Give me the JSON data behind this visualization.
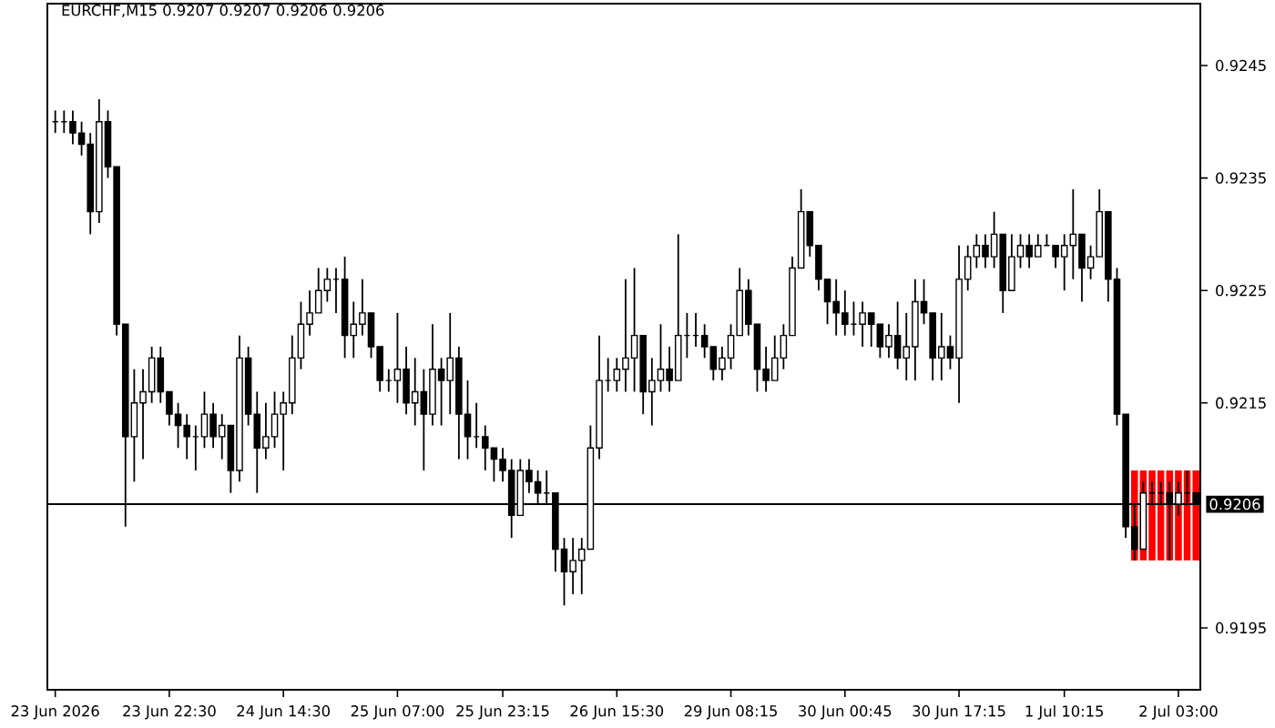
{
  "chart_data": {
    "type": "candlestick",
    "title": "EURCHF,M15  0.9207 0.9207 0.9206 0.9206",
    "categories": [
      "23 Jun 2026",
      null,
      null,
      null,
      null,
      null,
      null,
      null,
      null,
      null,
      null,
      null,
      null,
      "23 Jun 22:30",
      null,
      null,
      null,
      null,
      null,
      null,
      null,
      null,
      null,
      null,
      null,
      null,
      "24 Jun 14:30",
      null,
      null,
      null,
      null,
      null,
      null,
      null,
      null,
      null,
      null,
      null,
      null,
      "25 Jun 07:00",
      null,
      null,
      null,
      null,
      null,
      null,
      null,
      null,
      null,
      null,
      null,
      "25 Jun 23:15",
      null,
      null,
      null,
      null,
      null,
      null,
      null,
      null,
      null,
      null,
      null,
      null,
      "26 Jun 15:30",
      null,
      null,
      null,
      null,
      null,
      null,
      null,
      null,
      null,
      null,
      null,
      null,
      "29 Jun 08:15",
      null,
      null,
      null,
      null,
      null,
      null,
      null,
      null,
      null,
      null,
      null,
      null,
      "30 Jun 00:45",
      null,
      null,
      null,
      null,
      null,
      null,
      null,
      null,
      null,
      null,
      null,
      null,
      "30 Jun 17:15",
      null,
      null,
      null,
      null,
      null,
      null,
      null,
      null,
      null,
      null,
      null,
      "1 Jul 10:15",
      null,
      null,
      null,
      null,
      null,
      null,
      null,
      null,
      null,
      null,
      null,
      null,
      "2 Jul 03:00",
      null,
      null
    ],
    "series": [
      {
        "type": "bar",
        "color": "#ff0000",
        "base": [
          null,
          null,
          null,
          null,
          null,
          null,
          null,
          null,
          null,
          null,
          null,
          null,
          null,
          null,
          null,
          null,
          null,
          null,
          null,
          null,
          null,
          null,
          null,
          null,
          null,
          null,
          null,
          null,
          null,
          null,
          null,
          null,
          null,
          null,
          null,
          null,
          null,
          null,
          null,
          null,
          null,
          null,
          null,
          null,
          null,
          null,
          null,
          null,
          null,
          null,
          null,
          null,
          null,
          null,
          null,
          null,
          null,
          null,
          null,
          null,
          null,
          null,
          null,
          null,
          null,
          null,
          null,
          null,
          null,
          null,
          null,
          null,
          null,
          null,
          null,
          null,
          null,
          null,
          null,
          null,
          null,
          null,
          null,
          null,
          null,
          null,
          null,
          null,
          null,
          null,
          null,
          null,
          null,
          null,
          null,
          null,
          null,
          null,
          null,
          null,
          null,
          null,
          null,
          null,
          null,
          null,
          null,
          null,
          null,
          null,
          null,
          null,
          null,
          null,
          null,
          null,
          null,
          null,
          null,
          null,
          null,
          null,
          null,
          0.9201,
          0.9201,
          0.9201,
          0.9201,
          0.9201,
          0.9201,
          0.9201,
          0.9201
        ],
        "values": [
          null,
          null,
          null,
          null,
          null,
          null,
          null,
          null,
          null,
          null,
          null,
          null,
          null,
          null,
          null,
          null,
          null,
          null,
          null,
          null,
          null,
          null,
          null,
          null,
          null,
          null,
          null,
          null,
          null,
          null,
          null,
          null,
          null,
          null,
          null,
          null,
          null,
          null,
          null,
          null,
          null,
          null,
          null,
          null,
          null,
          null,
          null,
          null,
          null,
          null,
          null,
          null,
          null,
          null,
          null,
          null,
          null,
          null,
          null,
          null,
          null,
          null,
          null,
          null,
          null,
          null,
          null,
          null,
          null,
          null,
          null,
          null,
          null,
          null,
          null,
          null,
          null,
          null,
          null,
          null,
          null,
          null,
          null,
          null,
          null,
          null,
          null,
          null,
          null,
          null,
          null,
          null,
          null,
          null,
          null,
          null,
          null,
          null,
          null,
          null,
          null,
          null,
          null,
          null,
          null,
          null,
          null,
          null,
          null,
          null,
          null,
          null,
          null,
          null,
          null,
          null,
          null,
          null,
          null,
          null,
          null,
          null,
          null,
          0.0008,
          0.0008,
          0.0008,
          0.0008,
          0.0008,
          0.0008,
          0.0008,
          0.0008
        ]
      },
      {
        "color": "#000000",
        "ohlc": [
          [
            0.924,
            0.9241,
            0.9239,
            0.924
          ],
          [
            0.924,
            0.9241,
            0.9239,
            0.924
          ],
          [
            0.924,
            0.9241,
            0.9238,
            0.9239
          ],
          [
            0.9239,
            0.924,
            0.9237,
            0.9238
          ],
          [
            0.9238,
            0.9239,
            0.923,
            0.9232
          ],
          [
            0.9232,
            0.9242,
            0.9231,
            0.924
          ],
          [
            0.924,
            0.9241,
            0.9235,
            0.9236
          ],
          [
            0.9236,
            0.9236,
            0.9221,
            0.9222
          ],
          [
            0.9222,
            0.9222,
            0.9204,
            0.9212
          ],
          [
            0.9212,
            0.9218,
            0.9208,
            0.9215
          ],
          [
            0.9215,
            0.9218,
            0.921,
            0.9216
          ],
          [
            0.9216,
            0.922,
            0.9215,
            0.9219
          ],
          [
            0.9219,
            0.922,
            0.9215,
            0.9216
          ],
          [
            0.9216,
            0.9216,
            0.9213,
            0.9214
          ],
          [
            0.9214,
            0.9215,
            0.9211,
            0.9213
          ],
          [
            0.9213,
            0.9214,
            0.921,
            0.9212
          ],
          [
            0.9212,
            0.9213,
            0.9209,
            0.9212
          ],
          [
            0.9212,
            0.9216,
            0.9211,
            0.9214
          ],
          [
            0.9214,
            0.9215,
            0.9211,
            0.9212
          ],
          [
            0.9212,
            0.9214,
            0.921,
            0.9213
          ],
          [
            0.9213,
            0.9213,
            0.9207,
            0.9209
          ],
          [
            0.9209,
            0.9221,
            0.9208,
            0.9219
          ],
          [
            0.9219,
            0.922,
            0.9213,
            0.9214
          ],
          [
            0.9214,
            0.9216,
            0.9207,
            0.9211
          ],
          [
            0.9211,
            0.9215,
            0.921,
            0.9212
          ],
          [
            0.9212,
            0.9216,
            0.9211,
            0.9214
          ],
          [
            0.9214,
            0.9216,
            0.9209,
            0.9215
          ],
          [
            0.9215,
            0.9221,
            0.9214,
            0.9219
          ],
          [
            0.9219,
            0.9224,
            0.9218,
            0.9222
          ],
          [
            0.9222,
            0.9225,
            0.9221,
            0.9223
          ],
          [
            0.9223,
            0.9227,
            0.9223,
            0.9225
          ],
          [
            0.9225,
            0.9227,
            0.9224,
            0.9226
          ],
          [
            0.9226,
            0.9227,
            0.9223,
            0.9226
          ],
          [
            0.9226,
            0.9228,
            0.9219,
            0.9221
          ],
          [
            0.9221,
            0.9224,
            0.9219,
            0.9222
          ],
          [
            0.9222,
            0.9226,
            0.9221,
            0.9223
          ],
          [
            0.9223,
            0.9223,
            0.9219,
            0.922
          ],
          [
            0.922,
            0.922,
            0.9216,
            0.9217
          ],
          [
            0.9217,
            0.9218,
            0.9216,
            0.9217
          ],
          [
            0.9217,
            0.9223,
            0.9215,
            0.9218
          ],
          [
            0.9218,
            0.922,
            0.9214,
            0.9215
          ],
          [
            0.9215,
            0.9219,
            0.9213,
            0.9216
          ],
          [
            0.9216,
            0.9218,
            0.9209,
            0.9214
          ],
          [
            0.9214,
            0.9222,
            0.9213,
            0.9218
          ],
          [
            0.9218,
            0.9219,
            0.9213,
            0.9217
          ],
          [
            0.9217,
            0.9223,
            0.9214,
            0.9219
          ],
          [
            0.9219,
            0.922,
            0.921,
            0.9214
          ],
          [
            0.9214,
            0.9217,
            0.921,
            0.9212
          ],
          [
            0.9212,
            0.9215,
            0.9211,
            0.9212
          ],
          [
            0.9212,
            0.9213,
            0.9209,
            0.9211
          ],
          [
            0.9211,
            0.9211,
            0.9208,
            0.921
          ],
          [
            0.921,
            0.9211,
            0.9208,
            0.9209
          ],
          [
            0.9209,
            0.921,
            0.9203,
            0.9205
          ],
          [
            0.9205,
            0.921,
            0.9205,
            0.9209
          ],
          [
            0.9209,
            0.921,
            0.9207,
            0.9208
          ],
          [
            0.9208,
            0.9209,
            0.9206,
            0.9207
          ],
          [
            0.9207,
            0.9209,
            0.9206,
            0.9207
          ],
          [
            0.9207,
            0.9207,
            0.92,
            0.9202
          ],
          [
            0.9202,
            0.9203,
            0.9197,
            0.92
          ],
          [
            0.92,
            0.9203,
            0.9198,
            0.9201
          ],
          [
            0.9201,
            0.9203,
            0.9198,
            0.9202
          ],
          [
            0.9202,
            0.9213,
            0.9202,
            0.9211
          ],
          [
            0.9211,
            0.9221,
            0.921,
            0.9217
          ],
          [
            0.9217,
            0.9219,
            0.9216,
            0.9217
          ],
          [
            0.9217,
            0.9219,
            0.9216,
            0.9218
          ],
          [
            0.9218,
            0.9226,
            0.9216,
            0.9219
          ],
          [
            0.9219,
            0.9227,
            0.9216,
            0.9221
          ],
          [
            0.9221,
            0.9221,
            0.9214,
            0.9216
          ],
          [
            0.9216,
            0.9219,
            0.9213,
            0.9217
          ],
          [
            0.9217,
            0.9222,
            0.9216,
            0.9218
          ],
          [
            0.9218,
            0.922,
            0.9216,
            0.9217
          ],
          [
            0.9217,
            0.923,
            0.9217,
            0.9221
          ],
          [
            0.9221,
            0.9223,
            0.9219,
            0.9221
          ],
          [
            0.9221,
            0.9223,
            0.922,
            0.9221
          ],
          [
            0.9221,
            0.9222,
            0.9219,
            0.922
          ],
          [
            0.922,
            0.922,
            0.9217,
            0.9218
          ],
          [
            0.9218,
            0.922,
            0.9217,
            0.9219
          ],
          [
            0.9219,
            0.9222,
            0.9218,
            0.9221
          ],
          [
            0.9221,
            0.9227,
            0.9221,
            0.9225
          ],
          [
            0.9225,
            0.9226,
            0.9221,
            0.9222
          ],
          [
            0.9222,
            0.9222,
            0.9216,
            0.9218
          ],
          [
            0.9218,
            0.922,
            0.9216,
            0.9217
          ],
          [
            0.9217,
            0.9221,
            0.9217,
            0.9219
          ],
          [
            0.9219,
            0.9222,
            0.9218,
            0.9221
          ],
          [
            0.9221,
            0.9228,
            0.9221,
            0.9227
          ],
          [
            0.9227,
            0.9234,
            0.9227,
            0.9232
          ],
          [
            0.9232,
            0.9232,
            0.9228,
            0.9229
          ],
          [
            0.9229,
            0.9229,
            0.9225,
            0.9226
          ],
          [
            0.9226,
            0.9226,
            0.9222,
            0.9224
          ],
          [
            0.9224,
            0.9226,
            0.9221,
            0.9223
          ],
          [
            0.9223,
            0.9225,
            0.9221,
            0.9222
          ],
          [
            0.9222,
            0.9224,
            0.9221,
            0.9222
          ],
          [
            0.9222,
            0.9224,
            0.922,
            0.9223
          ],
          [
            0.9223,
            0.9223,
            0.922,
            0.9222
          ],
          [
            0.9222,
            0.9222,
            0.9219,
            0.922
          ],
          [
            0.922,
            0.9222,
            0.9219,
            0.9221
          ],
          [
            0.9221,
            0.9224,
            0.9218,
            0.9219
          ],
          [
            0.9219,
            0.9223,
            0.9217,
            0.922
          ],
          [
            0.922,
            0.9226,
            0.9217,
            0.9224
          ],
          [
            0.9224,
            0.9226,
            0.9222,
            0.9223
          ],
          [
            0.9223,
            0.9223,
            0.9217,
            0.9219
          ],
          [
            0.9219,
            0.9223,
            0.9217,
            0.922
          ],
          [
            0.922,
            0.9221,
            0.9218,
            0.9219
          ],
          [
            0.9219,
            0.9229,
            0.9215,
            0.9226
          ],
          [
            0.9226,
            0.9229,
            0.9225,
            0.9228
          ],
          [
            0.9228,
            0.923,
            0.9227,
            0.9229
          ],
          [
            0.9229,
            0.923,
            0.9227,
            0.9228
          ],
          [
            0.9228,
            0.9232,
            0.9227,
            0.923
          ],
          [
            0.923,
            0.923,
            0.9223,
            0.9225
          ],
          [
            0.9225,
            0.923,
            0.9225,
            0.9228
          ],
          [
            0.9228,
            0.923,
            0.9227,
            0.9229
          ],
          [
            0.9229,
            0.923,
            0.9227,
            0.9228
          ],
          [
            0.9228,
            0.923,
            0.9228,
            0.9229
          ],
          [
            0.9229,
            0.923,
            0.9229,
            0.9229
          ],
          [
            0.9229,
            0.9229,
            0.9227,
            0.9228
          ],
          [
            0.9228,
            0.923,
            0.9225,
            0.9229
          ],
          [
            0.9229,
            0.9234,
            0.9226,
            0.923
          ],
          [
            0.923,
            0.923,
            0.9224,
            0.9227
          ],
          [
            0.9227,
            0.9229,
            0.9226,
            0.9228
          ],
          [
            0.9228,
            0.9234,
            0.9228,
            0.9232
          ],
          [
            0.9232,
            0.9232,
            0.9224,
            0.9226
          ],
          [
            0.9226,
            0.9227,
            0.9213,
            0.9214
          ],
          [
            0.9214,
            0.9214,
            0.9203,
            0.9204
          ],
          [
            0.9204,
            0.9206,
            0.9201,
            0.9202
          ],
          [
            0.9202,
            0.9208,
            0.9202,
            0.9207
          ],
          [
            0.9207,
            0.9208,
            0.9206,
            0.9207
          ],
          [
            0.9207,
            0.9208,
            0.9206,
            0.9207
          ],
          [
            0.9207,
            0.9208,
            0.9201,
            0.9206
          ],
          [
            0.9206,
            0.9208,
            0.9205,
            0.9207
          ],
          [
            0.9207,
            0.9209,
            0.9206,
            0.9207
          ],
          [
            0.9207,
            0.9207,
            0.9206,
            0.9206
          ]
        ]
      }
    ],
    "ylim": [
      0.91895,
      0.92505
    ],
    "yticks": [
      0.9195,
      0.9215,
      0.9225,
      0.9235,
      0.9245
    ],
    "ref_lines": [
      {
        "axis": "y",
        "value": 0.9206,
        "label": "0.9206",
        "color": "#000000"
      }
    ]
  }
}
